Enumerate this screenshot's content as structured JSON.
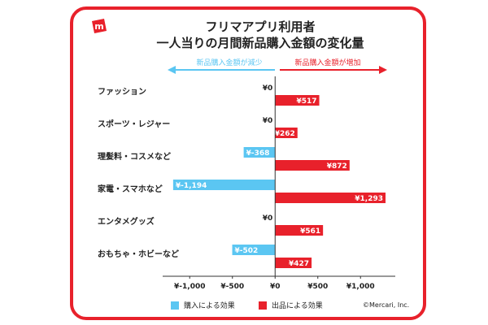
{
  "header": {
    "title_line1": "フリマアプリ利用者",
    "title_line2": "一人当りの月間新品購入金額の変化量",
    "logo_icon": "mercari-box-logo-icon"
  },
  "arrows": {
    "left_label": "新品購入金額が減少",
    "right_label": "新品購入金額が増加"
  },
  "colors": {
    "accent": "#e8212b",
    "purchase": "#5bc6f2",
    "selling": "#e8212b"
  },
  "legend": {
    "purchase": "購入による効果",
    "selling": "出品による効果"
  },
  "copyright": "©Mercari, Inc.",
  "chart_data": {
    "type": "bar",
    "orientation": "horizontal",
    "categories": [
      "ファッション",
      "スポーツ・レジャー",
      "理髪料・コスメなど",
      "家電・スマホなど",
      "エンタメグッズ",
      "おもちゃ・ホビーなど"
    ],
    "series": [
      {
        "name": "購入による効果",
        "values": [
          0,
          0,
          -368,
          -1194,
          0,
          -502
        ],
        "labels": [
          "¥0",
          "¥0",
          "¥-368",
          "¥-1,194",
          "¥0",
          "¥-502"
        ]
      },
      {
        "name": "出品による効果",
        "values": [
          517,
          262,
          872,
          1293,
          561,
          427
        ],
        "labels": [
          "¥517",
          "¥262",
          "¥872",
          "¥1,293",
          "¥561",
          "¥427"
        ]
      }
    ],
    "xlim": [
      -1250,
      1350
    ],
    "xticks": [
      -1000,
      -500,
      0,
      500,
      1000
    ],
    "xtick_labels": [
      "¥-1,000",
      "¥-500",
      "¥0",
      "¥500",
      "¥1,000"
    ],
    "grid": false,
    "legend_position": "bottom-left"
  }
}
